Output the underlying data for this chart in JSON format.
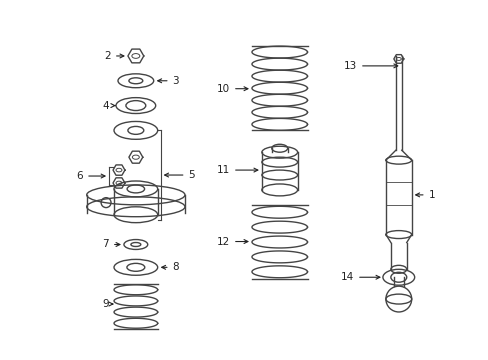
{
  "background_color": "#ffffff",
  "line_color": "#444444",
  "label_color": "#222222",
  "fig_width": 4.89,
  "fig_height": 3.6,
  "dpi": 100
}
